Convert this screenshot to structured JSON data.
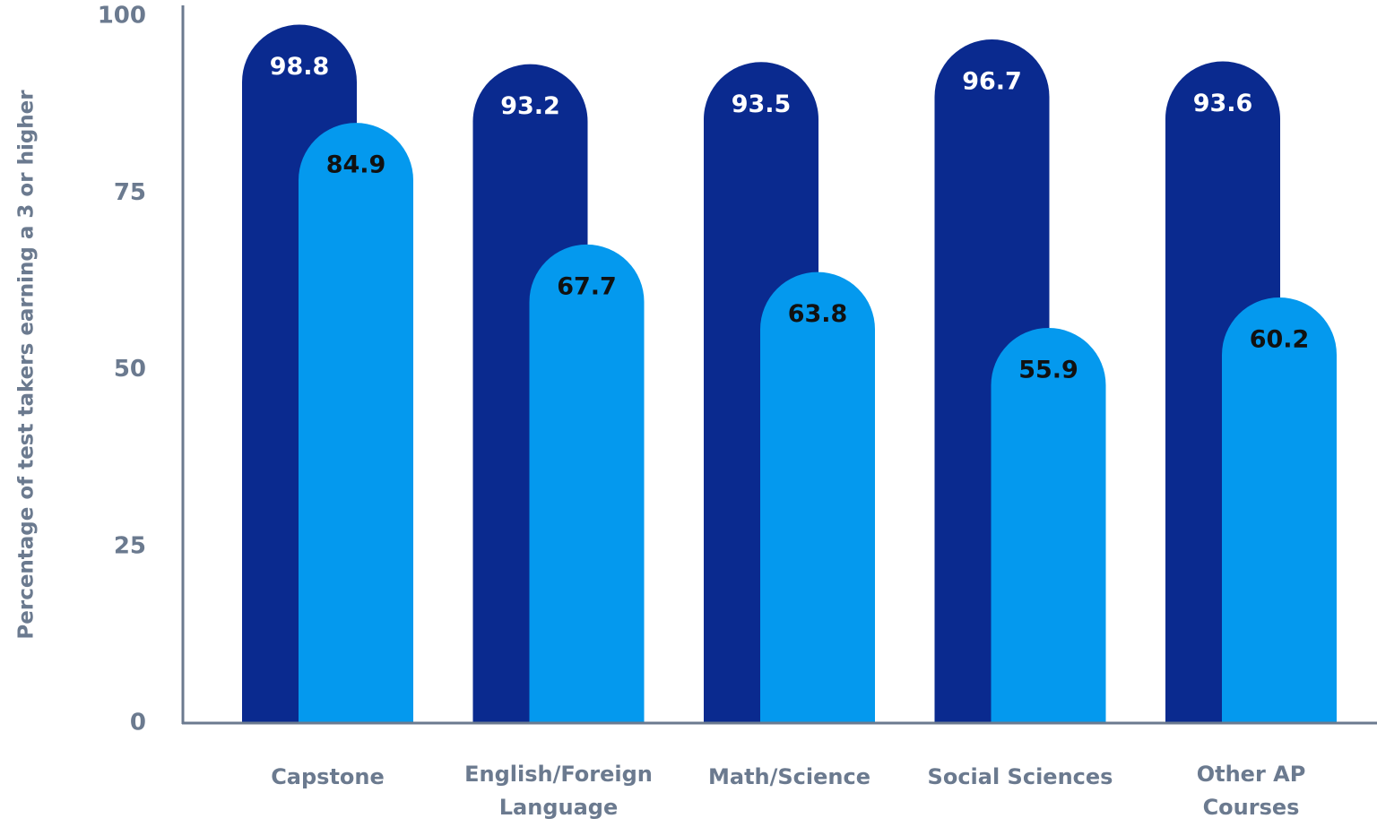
{
  "colors": {
    "series_dark": "#0a2a8f",
    "series_light": "#0499ee",
    "axis": "#6b7a8f",
    "label_on_dark": "#ffffff",
    "label_on_light": "#111111"
  },
  "chart_data": {
    "type": "bar",
    "ylabel": "Percentage of test takers earning a 3 or higher",
    "xlabel": "",
    "ylim": [
      0,
      100
    ],
    "yticks": [
      0,
      25,
      50,
      75,
      100
    ],
    "categories": [
      [
        "Capstone"
      ],
      [
        "English/Foreign",
        "Language"
      ],
      [
        "Math/Science"
      ],
      [
        "Social Sciences"
      ],
      [
        "Other AP",
        "Courses"
      ]
    ],
    "series": [
      {
        "values": [
          98.8,
          93.2,
          93.5,
          96.7,
          93.6
        ],
        "color": "#0a2a8f"
      },
      {
        "values": [
          84.9,
          67.7,
          63.8,
          55.9,
          60.2
        ],
        "color": "#0499ee"
      }
    ],
    "legend": "none",
    "grid": false
  }
}
